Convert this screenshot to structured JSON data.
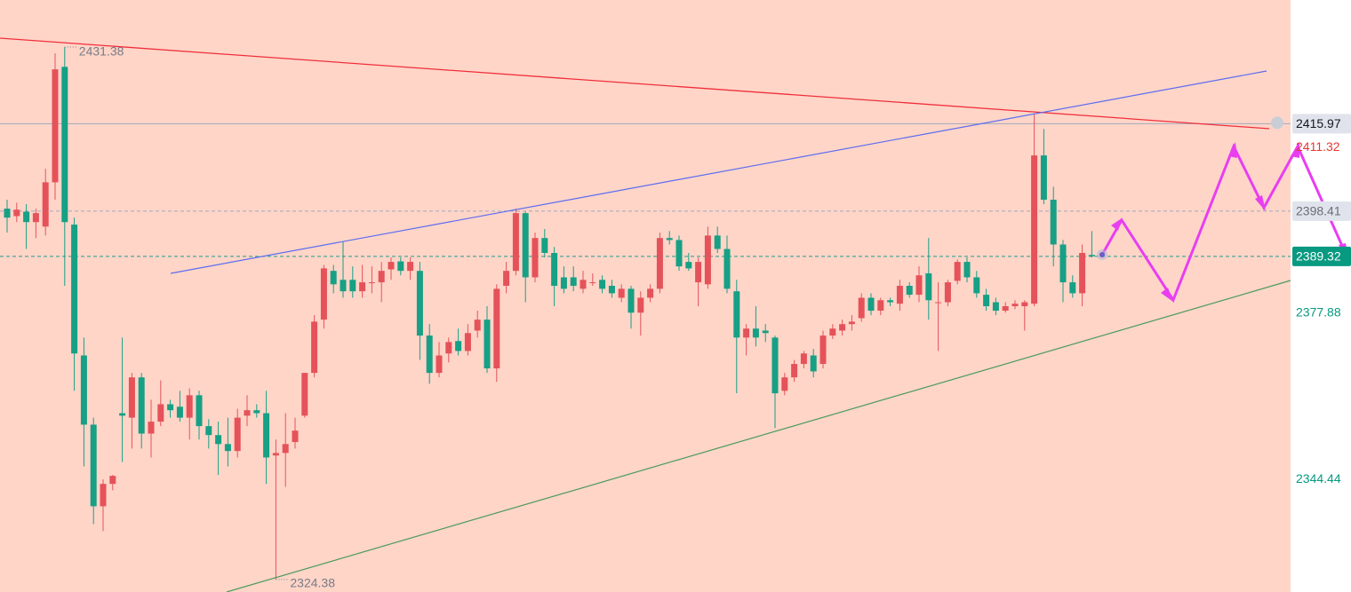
{
  "chart_data": {
    "type": "candlestick",
    "up_color": "#e5525a",
    "down_color": "#16a085",
    "background": "#ffd5c8",
    "ylim": [
      2321.87,
      2440.83
    ],
    "yticks": [
      2377.88,
      2344.44
    ],
    "ytick_color": "#089981",
    "open": [
      2398.9,
      2397.4,
      2398.3,
      2396.2,
      2395.3,
      2404.2,
      2427.4,
      2395.7,
      2369.4,
      2355.5,
      2339.1,
      2343.6,
      2357.8,
      2356.9,
      2365.0,
      2353.7,
      2356.1,
      2359.6,
      2359.1,
      2356.9,
      2361.4,
      2355.2,
      2353.4,
      2351.6,
      2350.2,
      2357.3,
      2358.4,
      2357.8,
      2349.3,
      2349.8,
      2352.0,
      2357.3,
      2365.9,
      2376.6,
      2386.4,
      2384.6,
      2384.6,
      2382.3,
      2384.1,
      2384.1,
      2386.7,
      2388.3,
      2386.4,
      2386.4,
      2373.4,
      2365.9,
      2369.8,
      2372.3,
      2370.3,
      2374.4,
      2376.6,
      2366.8,
      2383.4,
      2386.4,
      2398.0,
      2385.1,
      2393.0,
      2390.0,
      2385.1,
      2385.1,
      2382.8,
      2384.1,
      2384.6,
      2383.4,
      2381.0,
      2382.8,
      2378.0,
      2381.0,
      2382.8,
      2393.0,
      2392.6,
      2388.2,
      2384.1,
      2383.7,
      2393.5,
      2390.8,
      2382.3,
      2373.0,
      2374.8,
      2374.4,
      2373.0,
      2362.3,
      2365.0,
      2367.7,
      2369.4,
      2367.7,
      2373.4,
      2374.4,
      2375.7,
      2376.9,
      2381.0,
      2378.4,
      2380.5,
      2379.8,
      2383.4,
      2381.6,
      2385.9,
      2380.1,
      2380.1,
      2384.4,
      2388.2,
      2385.1,
      2381.6,
      2380.1,
      2378.4,
      2379.3,
      2379.3,
      2379.8,
      2409.6,
      2400.7,
      2391.7,
      2384.1,
      2381.9,
      2389.6
    ],
    "high": [
      2400.7,
      2400.1,
      2399.8,
      2398.9,
      2406.9,
      2430.1,
      2431.38,
      2397.1,
      2373.0,
      2356.9,
      2344.5,
      2345.4,
      2373.0,
      2365.9,
      2365.9,
      2360.5,
      2364.4,
      2360.5,
      2362.3,
      2362.8,
      2362.3,
      2356.6,
      2356.1,
      2356.9,
      2358.7,
      2361.4,
      2359.6,
      2362.3,
      2352.5,
      2357.8,
      2356.9,
      2365.9,
      2377.5,
      2387.6,
      2387.6,
      2392.3,
      2387.3,
      2387.6,
      2387.3,
      2388.2,
      2389.1,
      2389.1,
      2389.1,
      2388.2,
      2375.7,
      2372.1,
      2373.0,
      2374.8,
      2375.7,
      2378.4,
      2379.3,
      2383.7,
      2388.2,
      2398.9,
      2398.3,
      2394.1,
      2394.8,
      2391.2,
      2387.3,
      2387.3,
      2386.4,
      2385.9,
      2385.5,
      2384.6,
      2383.7,
      2383.4,
      2382.3,
      2383.7,
      2394.1,
      2394.4,
      2393.5,
      2390.0,
      2389.1,
      2395.3,
      2395.3,
      2393.5,
      2384.6,
      2375.7,
      2379.3,
      2375.7,
      2373.4,
      2365.9,
      2368.5,
      2370.3,
      2370.7,
      2374.4,
      2375.7,
      2376.6,
      2377.5,
      2381.9,
      2381.9,
      2381.0,
      2381.0,
      2384.6,
      2384.1,
      2387.3,
      2393.0,
      2384.1,
      2384.6,
      2388.7,
      2389.1,
      2386.4,
      2382.8,
      2381.0,
      2380.1,
      2380.5,
      2380.5,
      2418.0,
      2414.9,
      2403.3,
      2392.6,
      2385.5,
      2391.7,
      2394.4
    ],
    "low": [
      2394.1,
      2396.2,
      2390.8,
      2393.0,
      2393.5,
      2400.7,
      2383.4,
      2362.3,
      2347.1,
      2335.5,
      2334.1,
      2342.3,
      2348.0,
      2350.7,
      2350.7,
      2348.9,
      2355.2,
      2356.9,
      2356.1,
      2352.5,
      2352.5,
      2350.7,
      2345.4,
      2347.1,
      2348.9,
      2355.2,
      2356.9,
      2343.6,
      2324.38,
      2343.0,
      2350.7,
      2356.9,
      2365.0,
      2374.8,
      2381.9,
      2381.0,
      2381.0,
      2381.0,
      2381.9,
      2380.1,
      2384.6,
      2385.5,
      2384.6,
      2368.5,
      2363.7,
      2365.0,
      2368.0,
      2369.4,
      2369.4,
      2373.0,
      2365.9,
      2364.1,
      2381.9,
      2385.5,
      2380.1,
      2384.1,
      2389.1,
      2379.3,
      2381.9,
      2382.3,
      2381.9,
      2383.4,
      2381.9,
      2381.0,
      2380.1,
      2374.8,
      2373.4,
      2380.1,
      2381.9,
      2391.7,
      2386.4,
      2386.4,
      2379.3,
      2382.8,
      2390.0,
      2381.9,
      2361.8,
      2369.4,
      2371.2,
      2372.1,
      2354.8,
      2361.4,
      2364.1,
      2366.8,
      2365.0,
      2366.8,
      2372.7,
      2373.4,
      2374.4,
      2376.2,
      2377.5,
      2377.5,
      2379.3,
      2378.4,
      2381.0,
      2380.1,
      2376.6,
      2370.3,
      2379.3,
      2383.7,
      2384.1,
      2381.0,
      2378.4,
      2377.5,
      2378.0,
      2378.7,
      2374.4,
      2379.3,
      2399.8,
      2387.3,
      2380.1,
      2381.0,
      2379.3,
      2389.1
    ],
    "close": [
      2397.1,
      2398.7,
      2396.2,
      2398.0,
      2404.2,
      2426.9,
      2396.2,
      2369.8,
      2355.5,
      2339.1,
      2343.6,
      2345.2,
      2357.3,
      2365.0,
      2353.7,
      2356.1,
      2359.6,
      2358.4,
      2356.9,
      2361.4,
      2355.2,
      2353.4,
      2351.6,
      2350.2,
      2356.9,
      2358.4,
      2357.8,
      2348.9,
      2349.8,
      2351.6,
      2354.3,
      2365.9,
      2376.2,
      2386.9,
      2383.7,
      2382.3,
      2382.3,
      2384.1,
      2384.1,
      2386.4,
      2388.2,
      2386.4,
      2388.2,
      2373.4,
      2365.9,
      2369.4,
      2372.1,
      2370.3,
      2373.9,
      2376.6,
      2366.8,
      2382.8,
      2386.4,
      2398.0,
      2385.1,
      2393.0,
      2390.0,
      2383.4,
      2382.8,
      2383.4,
      2384.6,
      2384.1,
      2382.8,
      2381.9,
      2382.8,
      2378.0,
      2381.0,
      2382.8,
      2393.0,
      2392.6,
      2387.3,
      2386.9,
      2388.2,
      2393.5,
      2390.8,
      2382.8,
      2373.0,
      2374.8,
      2373.0,
      2373.9,
      2361.8,
      2365.0,
      2367.7,
      2369.8,
      2366.2,
      2373.4,
      2374.8,
      2375.7,
      2376.2,
      2381.0,
      2378.4,
      2380.5,
      2380.1,
      2383.4,
      2381.6,
      2385.5,
      2380.5,
      2380.1,
      2384.1,
      2388.2,
      2385.1,
      2381.9,
      2379.3,
      2378.4,
      2379.3,
      2379.8,
      2380.1,
      2409.6,
      2400.7,
      2391.7,
      2384.1,
      2381.9,
      2390.0,
      2389.32
    ],
    "high_label": 2431.38,
    "low_label": 2324.38,
    "price_lines": [
      {
        "value": 2415.97,
        "color": "#9aa5b8",
        "line": "solid",
        "label_bg": "#e0e3eb",
        "label_color": "#131722"
      },
      {
        "value": 2411.32,
        "color": "#e53935",
        "line": "none",
        "label_bg": "none",
        "label_color": "#e53935"
      },
      {
        "value": 2398.41,
        "color": "#9aa5b8",
        "line": "dashed",
        "label_bg": "#e0e3eb",
        "label_color": "#6a6d78"
      },
      {
        "value": 2389.32,
        "color": "#089981",
        "line": "dashed",
        "label_bg": "#089981",
        "label_color": "#ffffff"
      }
    ]
  }
}
